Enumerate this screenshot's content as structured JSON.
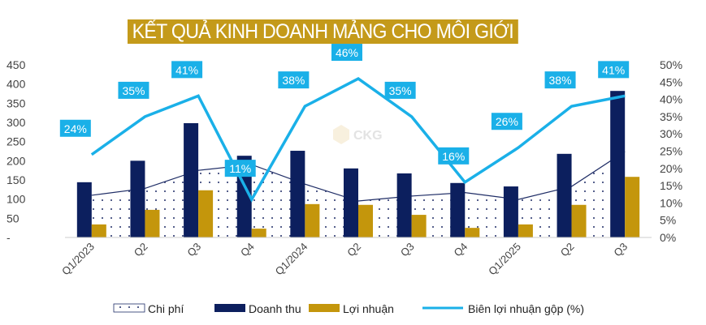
{
  "chart_data": {
    "type": "bar",
    "title": "KẾT QUẢ KINH DOANH MẢNG CHO MÔI GIỚI",
    "categories": [
      "Q1/2023",
      "Q2",
      "Q3",
      "Q4",
      "Q1/2024",
      "Q2",
      "Q3",
      "Q4",
      "Q1/2025",
      "Q2",
      "Q3"
    ],
    "series": [
      {
        "name": "Chi phí",
        "kind": "dotted-area",
        "axis": "left",
        "values": [
          110,
          128,
          175,
          190,
          139,
          95,
          108,
          117,
          99,
          133,
          224
        ]
      },
      {
        "name": "Doanh thu",
        "kind": "bar",
        "axis": "left",
        "values": [
          144,
          200,
          298,
          213,
          226,
          180,
          167,
          142,
          133,
          218,
          382
        ]
      },
      {
        "name": "Lợi nhuận",
        "kind": "bar",
        "axis": "left",
        "values": [
          34,
          72,
          123,
          23,
          87,
          85,
          59,
          25,
          34,
          85,
          158
        ]
      },
      {
        "name": "Biên lợi nhuận gộp (%)",
        "kind": "line",
        "axis": "right",
        "values": [
          24,
          35,
          41,
          11,
          38,
          46,
          35,
          16,
          26,
          38,
          41
        ]
      }
    ],
    "data_labels": [
      "24%",
      "35%",
      "41%",
      "11%",
      "38%",
      "46%",
      "35%",
      "16%",
      "26%",
      "38%",
      "41%"
    ],
    "left_axis": {
      "ylim": [
        0,
        450
      ],
      "ticks": [
        "-",
        "50",
        "100",
        "150",
        "200",
        "250",
        "300",
        "350",
        "400",
        "450"
      ]
    },
    "right_axis": {
      "ylim": [
        0,
        50
      ],
      "ticks": [
        "0%",
        "5%",
        "10%",
        "15%",
        "20%",
        "25%",
        "30%",
        "35%",
        "40%",
        "45%",
        "50%"
      ]
    },
    "legend_position": "bottom",
    "grid": false,
    "watermark": "CKG",
    "colors": {
      "title_bg": "#c49a1a",
      "doanh_thu": "#0c1f5e",
      "loi_nhuan": "#c4960c",
      "chi_phi": "#1f2d66",
      "margin": "#1ab0e8",
      "label_bg": "#1ab0e8"
    }
  }
}
